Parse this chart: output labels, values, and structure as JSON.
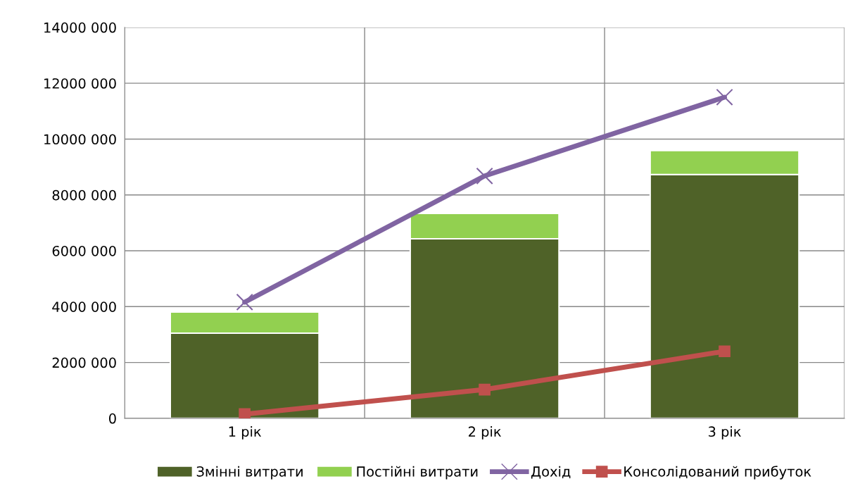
{
  "chart_data": {
    "type": "bar",
    "stacked": true,
    "categories": [
      "1 рік",
      "2 рік",
      "3 рік"
    ],
    "series": [
      {
        "name": "Змінні витрати",
        "color": "#4f6228",
        "values": [
          3050000,
          6430000,
          8730000
        ]
      },
      {
        "name": "Постійні витрати",
        "color": "#92d050",
        "values": [
          760000,
          910000,
          860000
        ]
      },
      {
        "name": "Дохід",
        "type": "line",
        "color": "#8064a2",
        "marker": "cross",
        "values": [
          4160000,
          8680000,
          11500000
        ]
      },
      {
        "name": "Консолідований прибуток",
        "type": "line",
        "color": "#c0504d",
        "marker": "square",
        "values": [
          150000,
          1030000,
          2400000
        ]
      }
    ],
    "ylim": [
      0,
      14000000
    ],
    "yticks": [
      0,
      {
        "value": 2000000,
        "label": "2000 000"
      },
      {
        "value": 4000000,
        "label": "4000 000"
      },
      {
        "value": 6000000,
        "label": "6000 000"
      },
      {
        "value": 8000000,
        "label": "8000 000"
      },
      {
        "value": 10000000,
        "label": "10000 000"
      },
      {
        "value": 12000000,
        "label": "12000 000"
      },
      {
        "value": 14000000,
        "label": "14000 000"
      }
    ],
    "grid": true,
    "legend": "bottom",
    "line_style": "solid"
  }
}
